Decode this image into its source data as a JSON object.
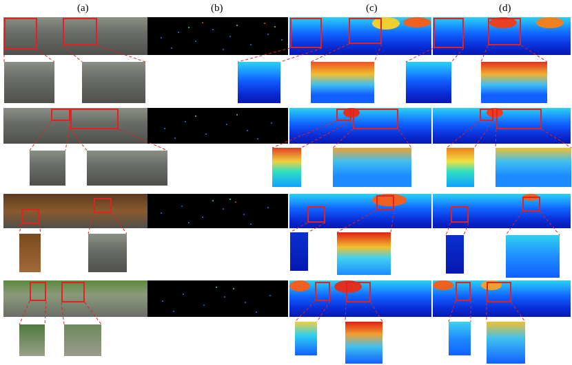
{
  "column_labels": [
    "(a)",
    "(b)",
    "(c)",
    "(d)"
  ],
  "colors": {
    "highlight_box": "#e3221f",
    "sparse_background": "#000000",
    "depth_low": "#0618b0",
    "depth_mid": "#1e90ff",
    "depth_high": "#e02010"
  }
}
